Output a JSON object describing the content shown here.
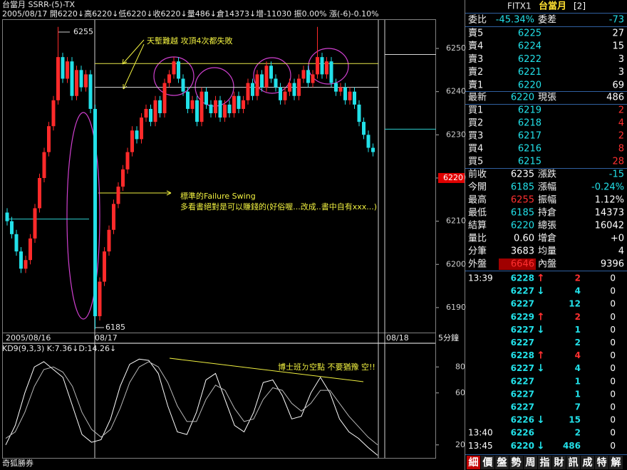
{
  "header": {
    "line1": "台當月 SSRR-(5)-TX",
    "line2": "2005/08/17 開6220↓高6220↓低6220↓收6220↓量486↓倉14373↓增-11030 振0.00% 漲(-6)-0.10%"
  },
  "chart_data": [
    {
      "type": "candlestick",
      "period": "5分鐘",
      "x_labels": [
        "2005/08/16",
        "08/17",
        "08/18"
      ],
      "annotations": [
        "天塹難越 攻頂4次都失敗",
        "標準的Failure Swing",
        "多看書絕對是可以賺錢的(好俗喔...改成..書中自有xxx...)",
        "6255",
        "6185"
      ],
      "ylim": [
        6182.4,
        6256.6
      ],
      "yticks": [
        6190,
        6200,
        6210,
        6220,
        6230,
        6240,
        6250
      ],
      "last_price": 6220,
      "levels": [
        6246.5,
        6241,
        6210.5,
        6248.6,
        6231.3
      ],
      "level_colors": [
        "#e8e84a",
        "#d8d8d8",
        "#2fd0d0",
        "#d8d8d8",
        "#2fd0d0"
      ],
      "up_color": "#ff2a2a",
      "down_color": "#22e0e8",
      "open": [
        6212,
        6210,
        6207,
        6203,
        6199,
        6201,
        6206,
        6213,
        6220,
        6226,
        6232,
        6238,
        6248,
        6243,
        6247,
        6239,
        6245,
        6241,
        6244,
        6236,
        6188,
        6196,
        6203,
        6208,
        6214,
        6218,
        6222,
        6226,
        6231,
        6229,
        6234,
        6236,
        6233,
        6238,
        6235,
        6242,
        6244,
        6247,
        6243,
        6240,
        6236,
        6238,
        6233,
        6240,
        6237,
        6235,
        6238,
        6234,
        6237,
        6235,
        6239,
        6236,
        6238,
        6242,
        6239,
        6244,
        6241,
        6246,
        6243,
        6241,
        6238,
        6240,
        6242,
        6239,
        6243,
        6245,
        6242,
        6244,
        6248,
        6244,
        6247,
        6242,
        6240,
        6241,
        6238,
        6240,
        6237,
        6233,
        6230,
        6227
      ],
      "high": [
        6213,
        6211,
        6208,
        6204,
        6202,
        6207,
        6214,
        6221,
        6227,
        6233,
        6239,
        6255,
        6249,
        6248,
        6248,
        6246,
        6246,
        6245,
        6245,
        6237,
        6197,
        6204,
        6209,
        6215,
        6219,
        6223,
        6227,
        6232,
        6232,
        6235,
        6237,
        6237,
        6239,
        6239,
        6243,
        6245,
        6248,
        6248,
        6244,
        6241,
        6239,
        6239,
        6241,
        6241,
        6238,
        6239,
        6239,
        6238,
        6238,
        6240,
        6240,
        6239,
        6243,
        6243,
        6245,
        6245,
        6247,
        6247,
        6244,
        6242,
        6241,
        6243,
        6243,
        6244,
        6246,
        6246,
        6245,
        6255,
        6249,
        6248,
        6248,
        6243,
        6242,
        6242,
        6241,
        6241,
        6238,
        6234,
        6231,
        6228
      ],
      "low": [
        6209,
        6206,
        6202,
        6198,
        6198,
        6200,
        6205,
        6212,
        6219,
        6225,
        6231,
        6237,
        6242,
        6242,
        6238,
        6238,
        6240,
        6240,
        6235,
        6185,
        6187,
        6195,
        6202,
        6207,
        6213,
        6217,
        6221,
        6225,
        6228,
        6228,
        6233,
        6232,
        6232,
        6234,
        6234,
        6241,
        6243,
        6242,
        6239,
        6235,
        6235,
        6232,
        6232,
        6236,
        6234,
        6234,
        6233,
        6233,
        6234,
        6234,
        6235,
        6235,
        6237,
        6238,
        6238,
        6240,
        6240,
        6242,
        6240,
        6237,
        6237,
        6239,
        6238,
        6238,
        6242,
        6241,
        6241,
        6243,
        6243,
        6243,
        6241,
        6239,
        6239,
        6237,
        6237,
        6236,
        6232,
        6229,
        6226,
        6225
      ],
      "close": [
        6210,
        6207,
        6203,
        6199,
        6201,
        6206,
        6213,
        6220,
        6226,
        6232,
        6238,
        6248,
        6243,
        6247,
        6239,
        6245,
        6241,
        6244,
        6236,
        6188,
        6196,
        6203,
        6208,
        6214,
        6218,
        6222,
        6226,
        6231,
        6229,
        6234,
        6236,
        6233,
        6238,
        6235,
        6242,
        6244,
        6247,
        6243,
        6240,
        6236,
        6238,
        6233,
        6240,
        6237,
        6235,
        6238,
        6234,
        6237,
        6235,
        6239,
        6236,
        6238,
        6242,
        6239,
        6244,
        6241,
        6246,
        6243,
        6241,
        6238,
        6240,
        6242,
        6239,
        6243,
        6245,
        6242,
        6244,
        6248,
        6244,
        6247,
        6242,
        6240,
        6241,
        6238,
        6240,
        6237,
        6233,
        6230,
        6227,
        6226
      ]
    },
    {
      "type": "line",
      "title": "KD9(9,3,3) K:7.36↓D:14.26↓",
      "annotation": "博士班ㄉ空點 不要猶豫 空!!",
      "ylim": [
        10,
        90
      ],
      "yticks": [
        20,
        60,
        80
      ],
      "series": [
        {
          "color": "#ffffff",
          "values": [
            20,
            35,
            60,
            80,
            84,
            78,
            72,
            50,
            28,
            22,
            24,
            40,
            65,
            82,
            86,
            85,
            75,
            50,
            30,
            28,
            45,
            70,
            75,
            55,
            35,
            30,
            45,
            68,
            70,
            58,
            40,
            42,
            60,
            72,
            60,
            40,
            30,
            25,
            18,
            12
          ]
        },
        {
          "color": "#b8b8b8",
          "values": [
            25,
            30,
            45,
            65,
            78,
            80,
            76,
            65,
            45,
            32,
            26,
            32,
            48,
            68,
            80,
            84,
            80,
            68,
            50,
            38,
            38,
            55,
            66,
            62,
            48,
            38,
            40,
            55,
            64,
            62,
            52,
            46,
            52,
            62,
            62,
            52,
            42,
            34,
            26,
            20
          ]
        }
      ]
    }
  ],
  "footer": "奇狐勝券",
  "quote": {
    "code": "FITX1",
    "name": "台當月",
    "page": "[2]",
    "summary": [
      "委比",
      "-45.34%",
      "委差",
      "-73"
    ],
    "asks": [
      [
        "賣5",
        "6225",
        "27"
      ],
      [
        "賣4",
        "6224",
        "15"
      ],
      [
        "賣3",
        "6222",
        "3"
      ],
      [
        "賣2",
        "6221",
        "3"
      ],
      [
        "賣1",
        "6220",
        "69"
      ]
    ],
    "last": [
      "最新",
      "6220",
      "現張",
      "486"
    ],
    "bids": [
      [
        "買1",
        "6219",
        "2"
      ],
      [
        "買2",
        "6218",
        "4"
      ],
      [
        "買3",
        "6217",
        "2"
      ],
      [
        "買4",
        "6216",
        "8"
      ],
      [
        "買5",
        "6215",
        "28"
      ]
    ],
    "stats": [
      [
        "前收",
        "6235",
        "漲跌",
        "-15"
      ],
      [
        "今開",
        "6185",
        "漲幅",
        "-0.24%"
      ],
      [
        "最高",
        "6255",
        "振幅",
        "1.12%"
      ],
      [
        "最低",
        "6185",
        "持倉",
        "14373"
      ],
      [
        "結算",
        "6220",
        "總張",
        "16042"
      ],
      [
        "量比",
        "0.60",
        "增倉",
        "+0"
      ],
      [
        "分筆",
        "3683",
        "均量",
        "4"
      ],
      [
        "外盤",
        "6646",
        "內盤",
        "9396"
      ]
    ],
    "ticks": [
      {
        "time": "13:39",
        "price": "6228",
        "dir": "↑",
        "vol": "2",
        "oi": "0"
      },
      {
        "price": "6227",
        "dir": "↓",
        "vol": "4",
        "oi": "0"
      },
      {
        "price": "6227",
        "vol": "12",
        "oi": "0"
      },
      {
        "price": "6229",
        "dir": "↑",
        "vol": "2",
        "oi": "0"
      },
      {
        "price": "6227",
        "dir": "↓",
        "vol": "1",
        "oi": "0"
      },
      {
        "price": "6227",
        "vol": "2",
        "oi": "0"
      },
      {
        "price": "6228",
        "dir": "↑",
        "vol": "4",
        "oi": "0"
      },
      {
        "price": "6227",
        "dir": "↓",
        "vol": "4",
        "oi": "0"
      },
      {
        "price": "6227",
        "vol": "1",
        "oi": "0"
      },
      {
        "price": "6227",
        "vol": "1",
        "oi": "0"
      },
      {
        "price": "6227",
        "vol": "7",
        "oi": "0"
      },
      {
        "price": "6226",
        "dir": "↓",
        "vol": "15",
        "oi": "0"
      },
      {
        "time": "13:40",
        "price": "6226",
        "vol": "2",
        "oi": "0"
      },
      {
        "time": "13:45",
        "price": "6220",
        "dir": "↓",
        "vol": "486",
        "oi": "0"
      }
    ],
    "tabs": [
      "細",
      "價",
      "盤",
      "勢",
      "周",
      "指",
      "財",
      "訊",
      "成",
      "特",
      "解"
    ]
  }
}
